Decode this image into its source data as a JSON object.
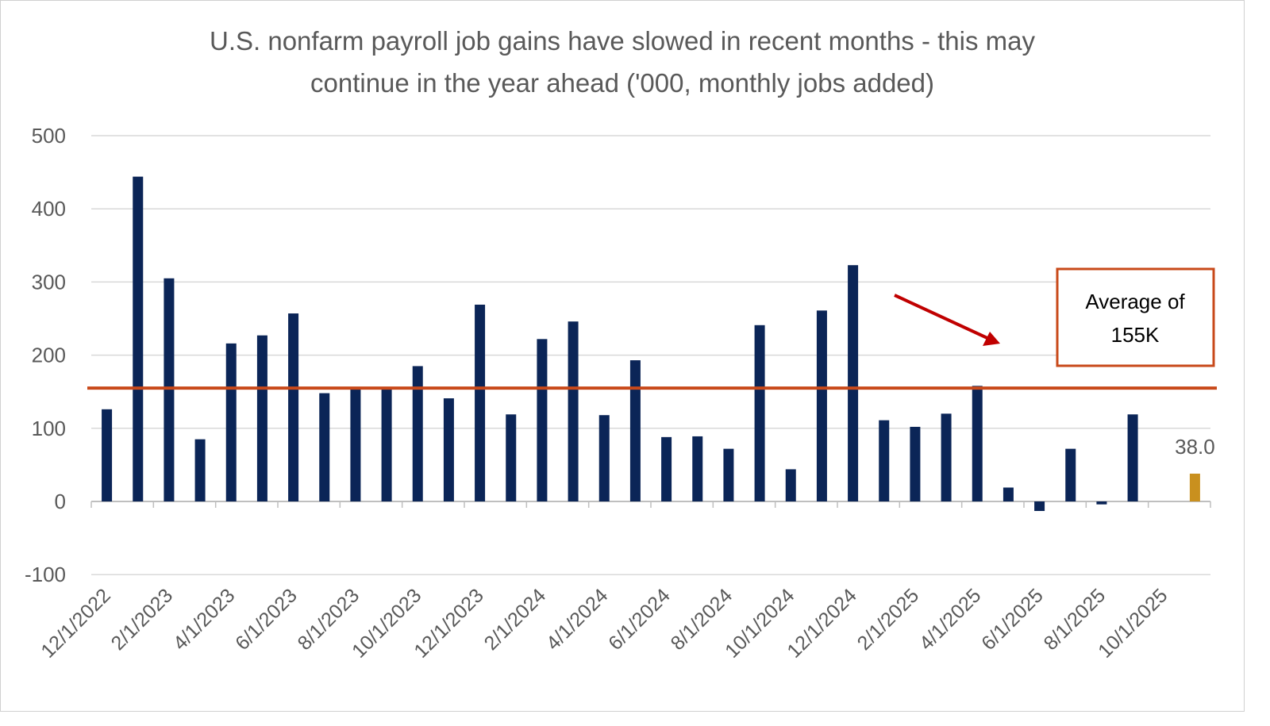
{
  "chart_data": {
    "type": "bar",
    "title": [
      "U.S. nonfarm payroll job gains have slowed in recent months - this may",
      "continue in the year ahead ('000, monthly jobs added)"
    ],
    "xlabel": "",
    "ylabel": "",
    "ylim": [
      -100,
      500
    ],
    "yticks": [
      -100,
      0,
      100,
      200,
      300,
      400,
      500
    ],
    "grid": true,
    "categories": [
      "12/1/2022",
      "1/1/2023",
      "2/1/2023",
      "3/1/2023",
      "4/1/2023",
      "5/1/2023",
      "6/1/2023",
      "7/1/2023",
      "8/1/2023",
      "9/1/2023",
      "10/1/2023",
      "11/1/2023",
      "12/1/2023",
      "1/1/2024",
      "2/1/2024",
      "3/1/2024",
      "4/1/2024",
      "5/1/2024",
      "6/1/2024",
      "7/1/2024",
      "8/1/2024",
      "9/1/2024",
      "10/1/2024",
      "11/1/2024",
      "12/1/2024",
      "1/1/2025",
      "2/1/2025",
      "3/1/2025",
      "4/1/2025",
      "5/1/2025",
      "6/1/2025",
      "7/1/2025",
      "8/1/2025",
      "9/1/2025",
      "10/1/2025",
      "11/1/2025"
    ],
    "xtick_labels": [
      "12/1/2022",
      "2/1/2023",
      "4/1/2023",
      "6/1/2023",
      "8/1/2023",
      "10/1/2023",
      "12/1/2023",
      "2/1/2024",
      "4/1/2024",
      "6/1/2024",
      "8/1/2024",
      "10/1/2024",
      "12/1/2024",
      "2/1/2025",
      "4/1/2025",
      "6/1/2025",
      "8/1/2025",
      "10/1/2025"
    ],
    "values": [
      126,
      444,
      305,
      85,
      216,
      227,
      257,
      148,
      155,
      155,
      185,
      141,
      269,
      119,
      222,
      246,
      118,
      193,
      88,
      89,
      72,
      241,
      44,
      261,
      323,
      111,
      102,
      120,
      158,
      19,
      -13,
      72,
      -4,
      119,
      null,
      38
    ],
    "bar_color": "#0b2557",
    "highlight_color": "#c9901e",
    "highlight_index": 35,
    "data_label": "38.0",
    "average": {
      "value": 155,
      "color": "#c8491a",
      "label_lines": [
        "Average of",
        "155K"
      ]
    },
    "arrow_color": "#c00000"
  }
}
